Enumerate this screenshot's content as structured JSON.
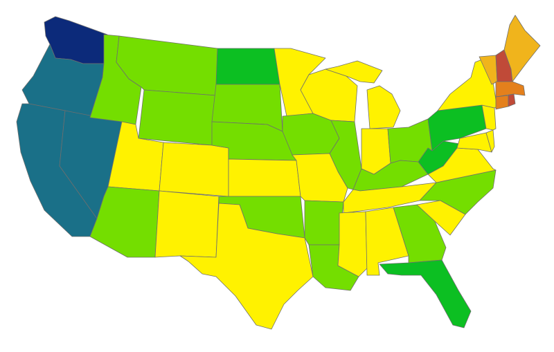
{
  "map": {
    "legend": null,
    "colors": {
      "navy": "#0c2a7a",
      "teal": "#1a7088",
      "green": "#0cbf22",
      "lime": "#74de00",
      "yellow": "#fff200",
      "orange": "#f0b41c",
      "dark_orange": "#e4801c",
      "red": "#c04a38",
      "border": "#6e6e6e",
      "background": "#ffffff"
    },
    "states": [
      {
        "id": "WA",
        "color_key": "navy"
      },
      {
        "id": "OR",
        "color_key": "teal"
      },
      {
        "id": "CA",
        "color_key": "teal"
      },
      {
        "id": "NV",
        "color_key": "teal"
      },
      {
        "id": "ID",
        "color_key": "lime"
      },
      {
        "id": "MT",
        "color_key": "lime"
      },
      {
        "id": "WY",
        "color_key": "lime"
      },
      {
        "id": "UT",
        "color_key": "yellow"
      },
      {
        "id": "CO",
        "color_key": "yellow"
      },
      {
        "id": "AZ",
        "color_key": "lime"
      },
      {
        "id": "NM",
        "color_key": "yellow"
      },
      {
        "id": "ND",
        "color_key": "green"
      },
      {
        "id": "SD",
        "color_key": "lime"
      },
      {
        "id": "NE",
        "color_key": "lime"
      },
      {
        "id": "KS",
        "color_key": "yellow"
      },
      {
        "id": "OK",
        "color_key": "lime"
      },
      {
        "id": "TX",
        "color_key": "yellow"
      },
      {
        "id": "MN",
        "color_key": "yellow"
      },
      {
        "id": "IA",
        "color_key": "lime"
      },
      {
        "id": "MO",
        "color_key": "yellow"
      },
      {
        "id": "AR",
        "color_key": "lime"
      },
      {
        "id": "LA",
        "color_key": "lime"
      },
      {
        "id": "WI",
        "color_key": "yellow"
      },
      {
        "id": "IL",
        "color_key": "lime"
      },
      {
        "id": "MI",
        "color_key": "yellow"
      },
      {
        "id": "IN",
        "color_key": "yellow"
      },
      {
        "id": "OH",
        "color_key": "lime"
      },
      {
        "id": "KY",
        "color_key": "lime"
      },
      {
        "id": "TN",
        "color_key": "yellow"
      },
      {
        "id": "MS",
        "color_key": "yellow"
      },
      {
        "id": "AL",
        "color_key": "yellow"
      },
      {
        "id": "GA",
        "color_key": "lime"
      },
      {
        "id": "FL",
        "color_key": "green"
      },
      {
        "id": "SC",
        "color_key": "yellow"
      },
      {
        "id": "NC",
        "color_key": "lime"
      },
      {
        "id": "VA",
        "color_key": "yellow"
      },
      {
        "id": "WV",
        "color_key": "green"
      },
      {
        "id": "PA",
        "color_key": "green"
      },
      {
        "id": "NY",
        "color_key": "yellow"
      },
      {
        "id": "NJ",
        "color_key": "yellow"
      },
      {
        "id": "DE",
        "color_key": "yellow"
      },
      {
        "id": "MD",
        "color_key": "yellow"
      },
      {
        "id": "CT",
        "color_key": "dark_orange"
      },
      {
        "id": "RI",
        "color_key": "red"
      },
      {
        "id": "MA",
        "color_key": "dark_orange"
      },
      {
        "id": "VT",
        "color_key": "orange"
      },
      {
        "id": "NH",
        "color_key": "red"
      },
      {
        "id": "ME",
        "color_key": "orange"
      }
    ]
  }
}
